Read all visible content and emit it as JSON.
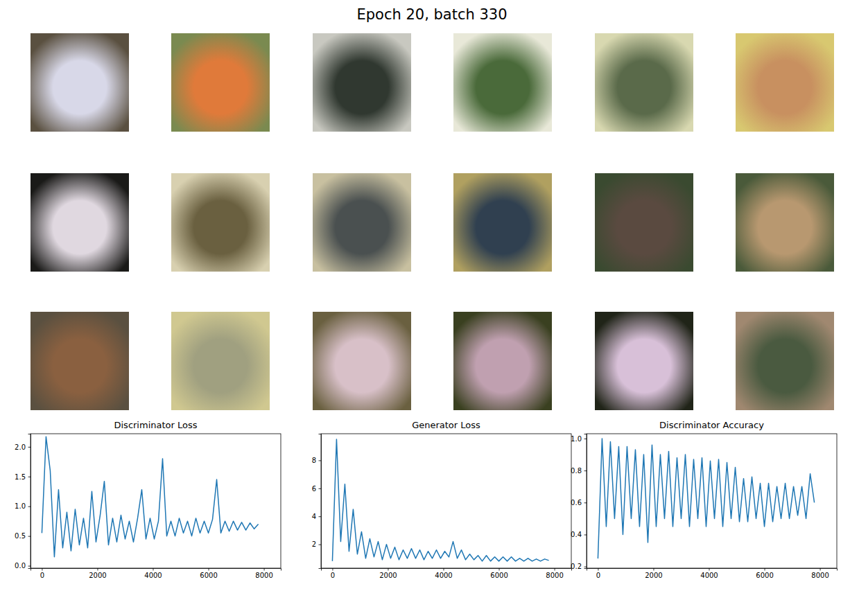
{
  "title": "Epoch 20, batch 330",
  "samples": [
    {
      "colors": [
        "#5a5040",
        "#d8d8e8"
      ]
    },
    {
      "colors": [
        "#7a8a50",
        "#e07a3a"
      ]
    },
    {
      "colors": [
        "#c8c8c0",
        "#303830"
      ]
    },
    {
      "colors": [
        "#e8e8d8",
        "#4a6a3a"
      ]
    },
    {
      "colors": [
        "#d8d8b0",
        "#5a6a4a"
      ]
    },
    {
      "colors": [
        "#d8c870",
        "#c89060"
      ]
    },
    {
      "colors": [
        "#1a1a18",
        "#e0d8e0"
      ]
    },
    {
      "colors": [
        "#d8d0b0",
        "#6a6040"
      ]
    },
    {
      "colors": [
        "#c8c0a0",
        "#4a5050"
      ]
    },
    {
      "colors": [
        "#b0a060",
        "#304050"
      ]
    },
    {
      "colors": [
        "#3a4a30",
        "#5a4a40"
      ]
    },
    {
      "colors": [
        "#4a5a3a",
        "#b89870"
      ]
    },
    {
      "colors": [
        "#5a5040",
        "#8a6040"
      ]
    },
    {
      "colors": [
        "#d0c890",
        "#a0a080"
      ]
    },
    {
      "colors": [
        "#6a6040",
        "#d8c0c8"
      ]
    },
    {
      "colors": [
        "#3a4020",
        "#c0a0b0"
      ]
    },
    {
      "colors": [
        "#202418",
        "#d8c0d8"
      ]
    },
    {
      "colors": [
        "#a08870",
        "#4a5a40"
      ]
    }
  ],
  "chart_data": [
    {
      "type": "line",
      "title": "Discriminator Loss",
      "color": "#1f77b4",
      "x": [
        0,
        150,
        300,
        450,
        600,
        750,
        900,
        1050,
        1200,
        1350,
        1500,
        1650,
        1800,
        1950,
        2100,
        2250,
        2400,
        2550,
        2700,
        2850,
        3000,
        3150,
        3300,
        3450,
        3600,
        3750,
        3900,
        4050,
        4200,
        4350,
        4500,
        4650,
        4800,
        4950,
        5100,
        5250,
        5400,
        5550,
        5700,
        5850,
        6000,
        6150,
        6300,
        6450,
        6600,
        6750,
        6900,
        7050,
        7200,
        7350,
        7500,
        7650,
        7800
      ],
      "values": [
        0.55,
        2.17,
        1.6,
        0.15,
        1.28,
        0.3,
        0.9,
        0.25,
        0.95,
        0.35,
        0.8,
        0.3,
        1.25,
        0.4,
        0.85,
        1.42,
        0.35,
        0.8,
        0.4,
        0.85,
        0.45,
        0.75,
        0.4,
        0.8,
        1.28,
        0.45,
        0.8,
        0.45,
        0.75,
        1.8,
        0.5,
        0.75,
        0.5,
        0.8,
        0.55,
        0.75,
        0.5,
        0.8,
        0.55,
        0.75,
        0.55,
        0.78,
        1.45,
        0.55,
        0.75,
        0.58,
        0.75,
        0.6,
        0.73,
        0.6,
        0.72,
        0.62,
        0.7
      ],
      "xlim": [
        -410,
        8610
      ],
      "ylim": [
        -0.04,
        2.22
      ],
      "xticks": [
        0,
        2000,
        4000,
        6000,
        8000
      ],
      "yticks": [
        {
          "value": 0,
          "label": "0.0"
        },
        0.5,
        {
          "value": 1,
          "label": "1.0"
        },
        1.5,
        {
          "value": 2,
          "label": "2.0"
        }
      ]
    },
    {
      "type": "line",
      "title": "Generator Loss",
      "color": "#1f77b4",
      "x": [
        0,
        150,
        300,
        450,
        600,
        750,
        900,
        1050,
        1200,
        1350,
        1500,
        1650,
        1800,
        1950,
        2100,
        2250,
        2400,
        2550,
        2700,
        2850,
        3000,
        3150,
        3300,
        3450,
        3600,
        3750,
        3900,
        4050,
        4200,
        4350,
        4500,
        4650,
        4800,
        4950,
        5100,
        5250,
        5400,
        5550,
        5700,
        5850,
        6000,
        6150,
        6300,
        6450,
        6600,
        6750,
        6900,
        7050,
        7200,
        7350,
        7500,
        7650,
        7800
      ],
      "values": [
        0.8,
        9.5,
        2.2,
        6.3,
        1.5,
        4.5,
        1.3,
        2.9,
        1.0,
        2.4,
        1.1,
        2.2,
        0.9,
        2.0,
        1.0,
        1.8,
        0.9,
        1.6,
        1.0,
        1.7,
        1.0,
        1.6,
        0.9,
        1.5,
        1.0,
        1.6,
        1.0,
        1.5,
        1.1,
        2.2,
        1.0,
        1.6,
        0.9,
        1.3,
        0.9,
        1.2,
        0.8,
        1.2,
        0.8,
        1.1,
        0.8,
        1.1,
        0.8,
        1.1,
        0.8,
        1.0,
        0.8,
        1.0,
        0.8,
        0.95,
        0.8,
        0.95,
        0.85
      ],
      "xlim": [
        -410,
        8610
      ],
      "ylim": [
        0.3,
        9.9
      ],
      "xticks": [
        0,
        2000,
        4000,
        6000,
        8000
      ],
      "yticks": [
        2,
        4,
        6,
        8
      ]
    },
    {
      "type": "line",
      "title": "Discriminator Accuracy",
      "color": "#1f77b4",
      "x": [
        0,
        150,
        300,
        450,
        600,
        750,
        900,
        1050,
        1200,
        1350,
        1500,
        1650,
        1800,
        1950,
        2100,
        2250,
        2400,
        2550,
        2700,
        2850,
        3000,
        3150,
        3300,
        3450,
        3600,
        3750,
        3900,
        4050,
        4200,
        4350,
        4500,
        4650,
        4800,
        4950,
        5100,
        5250,
        5400,
        5550,
        5700,
        5850,
        6000,
        6150,
        6300,
        6450,
        6600,
        6750,
        6900,
        7050,
        7200,
        7350,
        7500,
        7650,
        7800
      ],
      "values": [
        0.25,
        1.0,
        0.45,
        0.98,
        0.5,
        0.95,
        0.4,
        0.95,
        0.5,
        0.93,
        0.45,
        0.9,
        0.35,
        0.96,
        0.45,
        0.9,
        0.5,
        0.92,
        0.45,
        0.88,
        0.5,
        0.9,
        0.45,
        0.87,
        0.5,
        0.88,
        0.45,
        0.86,
        0.5,
        0.87,
        0.45,
        0.85,
        0.5,
        0.82,
        0.48,
        0.75,
        0.48,
        0.76,
        0.5,
        0.72,
        0.45,
        0.72,
        0.48,
        0.7,
        0.5,
        0.72,
        0.5,
        0.7,
        0.52,
        0.7,
        0.5,
        0.78,
        0.6
      ],
      "xlim": [
        -410,
        8610
      ],
      "ylim": [
        0.19,
        1.03
      ],
      "xticks": [
        0,
        2000,
        4000,
        6000,
        8000
      ],
      "yticks": [
        0.2,
        0.4,
        0.6,
        0.8,
        {
          "value": 1,
          "label": "1.0"
        }
      ]
    }
  ]
}
